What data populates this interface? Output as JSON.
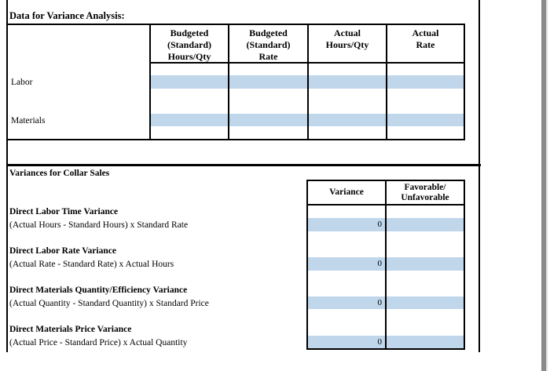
{
  "page": {
    "background": "#ffffff",
    "highlight_color": "#bfd6eb",
    "border_color": "#000000",
    "edge_shadow_color": "#8a8a8a"
  },
  "data_section": {
    "title": "Data for Variance Analysis:",
    "columns": [
      "Budgeted\n(Standard)\nHours/Qty",
      "Budgeted\n(Standard)\nRate",
      "Actual\nHours/Qty",
      "Actual\nRate"
    ],
    "rows": [
      {
        "label": "Labor"
      },
      {
        "label": "Materials"
      }
    ]
  },
  "variances_section": {
    "title": "Variances for Collar Sales",
    "columns": [
      "Variance",
      "Favorable/\nUnfavorable"
    ],
    "items": [
      {
        "title": "Direct Labor Time Variance",
        "formula": "(Actual Hours - Standard Hours) x Standard Rate",
        "variance": "0",
        "favorable": ""
      },
      {
        "title": "Direct Labor Rate Variance",
        "formula": "(Actual Rate - Standard Rate) x Actual Hours",
        "variance": "0",
        "favorable": ""
      },
      {
        "title": "Direct Materials Quantity/Efficiency Variance",
        "formula": "(Actual Quantity - Standard Quantity) x Standard Price",
        "variance": "0",
        "favorable": ""
      },
      {
        "title": "Direct Materials Price Variance",
        "formula": "(Actual Price - Standard Price) x Actual Quantity",
        "variance": "0",
        "favorable": ""
      }
    ]
  }
}
